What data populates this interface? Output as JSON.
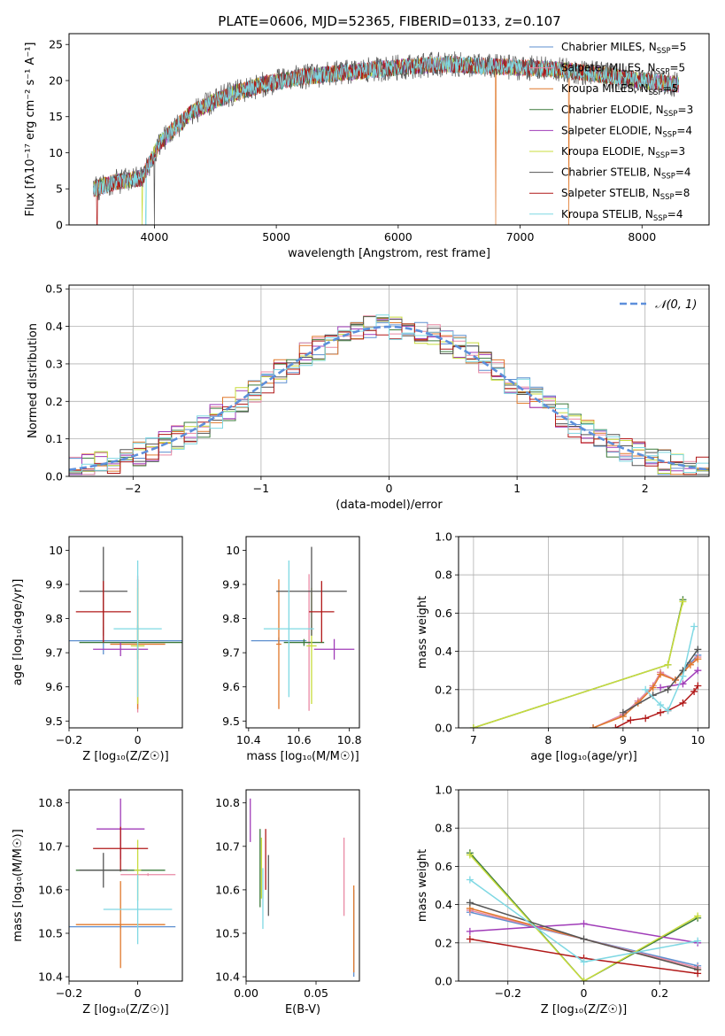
{
  "figure_title": "PLATE=0606, MJD=52365, FIBERID=0133, z=0.107",
  "colors": {
    "Chabrier MILES": "#5d8fcf",
    "Salpeter MILES": "#e989a4",
    "Kroupa MILES": "#e0792c",
    "Chabrier ELODIE": "#3b7a3b",
    "Salpeter ELODIE": "#a03cb8",
    "Kroupa ELODIE": "#c8dc3c",
    "Chabrier STELIB": "#555555",
    "Salpeter STELIB": "#b11818",
    "Kroupa STELIB": "#7fd8e3"
  },
  "chart_data": [
    {
      "id": "spectrum",
      "type": "line",
      "xlabel": "wavelength [Angstrom, rest frame]",
      "ylabel": "Flux [fλ10⁻¹⁷ erg cm⁻² s⁻¹ A⁻¹]",
      "xlim": [
        3300,
        8550
      ],
      "ylim": [
        0,
        26.5
      ],
      "xticks": [
        4000,
        5000,
        6000,
        7000,
        8000
      ],
      "yticks": [
        0,
        5,
        10,
        15,
        20,
        25
      ],
      "grid": false,
      "legend_position": "upper-right",
      "legend": [
        {
          "name": "Chabrier MILES",
          "sub": "SSP",
          "n": "5"
        },
        {
          "name": "Salpeter MILES",
          "sub": "SSP",
          "n": "5"
        },
        {
          "name": "Kroupa MILES",
          "sub": "SSP",
          "n": "5"
        },
        {
          "name": "Chabrier ELODIE",
          "sub": "SSP",
          "n": "3"
        },
        {
          "name": "Salpeter ELODIE",
          "sub": "SSP",
          "n": "4"
        },
        {
          "name": "Kroupa ELODIE",
          "sub": "SSP",
          "n": "3"
        },
        {
          "name": "Chabrier STELIB",
          "sub": "SSP",
          "n": "4"
        },
        {
          "name": "Salpeter STELIB",
          "sub": "SSP",
          "n": "8"
        },
        {
          "name": "Kroupa STELIB",
          "sub": "SSP",
          "n": "4"
        }
      ],
      "continuum": {
        "x": [
          3500,
          3700,
          3900,
          4050,
          4300,
          4600,
          4900,
          5200,
          5500,
          5800,
          6100,
          6400,
          6700,
          7000,
          7300,
          7600,
          7900,
          8250
        ],
        "y": [
          5,
          6,
          6.5,
          11.5,
          15.5,
          18,
          19.5,
          20.5,
          21,
          21.5,
          22,
          22.3,
          22,
          21.8,
          21.5,
          21,
          20.2,
          19.5
        ]
      },
      "data_range": [
        3500,
        8300
      ],
      "noise_amplitude": 1.5,
      "dropouts": [
        {
          "x": 3530,
          "series": "Salpeter STELIB"
        },
        {
          "x": 3900,
          "series": "Kroupa ELODIE"
        },
        {
          "x": 3930,
          "series": "Kroupa STELIB"
        },
        {
          "x": 4000,
          "series": "Chabrier STELIB"
        },
        {
          "x": 6800,
          "series": "Kroupa MILES"
        },
        {
          "x": 7400,
          "series": "Kroupa MILES"
        }
      ]
    },
    {
      "id": "residuals",
      "type": "bar",
      "xlabel": "(data-model)/error",
      "ylabel": "Normed distribution",
      "xlim": [
        -2.5,
        2.5
      ],
      "ylim": [
        0,
        0.51
      ],
      "xticks": [
        -2,
        -1,
        0,
        1,
        2
      ],
      "yticks": [
        0.0,
        0.1,
        0.2,
        0.3,
        0.4,
        0.5
      ],
      "grid": true,
      "bin_width": 0.1,
      "legend": [
        {
          "name": "𝒩(0, 1)",
          "style": "dashed"
        }
      ],
      "legend_position": "upper-right",
      "reference_curve": {
        "name": "𝒩(0, 1)",
        "mean": 0,
        "sigma": 1,
        "color": "#5d8fdb"
      },
      "series_jitter": 0.035
    },
    {
      "id": "age_vs_Z",
      "type": "scatter",
      "xlabel": "Z [log₁₀(Z/Z☉)]",
      "ylabel": "age  [log₁₀(age/yr)]",
      "xlim": [
        -0.2,
        0.13
      ],
      "ylim": [
        9.48,
        10.04
      ],
      "xticks": [
        -0.2,
        0.0
      ],
      "yticks": [
        9.5,
        9.6,
        9.7,
        9.8,
        9.9,
        10.0
      ],
      "grid": false,
      "points": [
        {
          "series": "Chabrier MILES",
          "x": -0.1,
          "y": 9.735,
          "xerr": 0.23,
          "yerr": 0.04
        },
        {
          "series": "Salpeter MILES",
          "x": 0.0,
          "y": 9.725,
          "xerr": 0.08,
          "yerr": 0.2
        },
        {
          "series": "Kroupa MILES",
          "x": 0.0,
          "y": 9.725,
          "xerr": 0.08,
          "yerr": 0.19
        },
        {
          "series": "Chabrier ELODIE",
          "x": 0.0,
          "y": 9.73,
          "xerr": 0.17,
          "yerr": 0.05
        },
        {
          "series": "Salpeter ELODIE",
          "x": -0.05,
          "y": 9.71,
          "xerr": 0.08,
          "yerr": 0.02
        },
        {
          "series": "Kroupa ELODIE",
          "x": 0.0,
          "y": 9.72,
          "xerr": 0.02,
          "yerr": 0.17
        },
        {
          "series": "Chabrier STELIB",
          "x": -0.1,
          "y": 9.88,
          "xerr": 0.07,
          "yerr": 0.13
        },
        {
          "series": "Salpeter STELIB",
          "x": -0.1,
          "y": 9.82,
          "xerr": 0.08,
          "yerr": 0.09
        },
        {
          "series": "Kroupa STELIB",
          "x": 0.0,
          "y": 9.77,
          "xerr": 0.07,
          "yerr": 0.2
        }
      ]
    },
    {
      "id": "age_vs_mass",
      "type": "scatter",
      "xlabel": "mass [log₁₀(M/M☉)]",
      "ylabel": "",
      "xlim": [
        10.39,
        10.84
      ],
      "ylim": [
        9.48,
        10.04
      ],
      "xticks": [
        10.4,
        10.6,
        10.8
      ],
      "yticks": [
        9.5,
        9.6,
        9.7,
        9.8,
        9.9,
        10.0
      ],
      "grid": false,
      "points": [
        {
          "series": "Chabrier MILES",
          "x": 10.52,
          "y": 9.735,
          "xerr": 0.11,
          "yerr": 0.01
        },
        {
          "series": "Salpeter MILES",
          "x": 10.64,
          "y": 9.73,
          "xerr": 0.01,
          "yerr": 0.2
        },
        {
          "series": "Kroupa MILES",
          "x": 10.52,
          "y": 9.725,
          "xerr": 0.01,
          "yerr": 0.19
        },
        {
          "series": "Chabrier ELODIE",
          "x": 10.62,
          "y": 9.73,
          "xerr": 0.08,
          "yerr": 0.01
        },
        {
          "series": "Salpeter ELODIE",
          "x": 10.74,
          "y": 9.71,
          "xerr": 0.08,
          "yerr": 0.03
        },
        {
          "series": "Kroupa ELODIE",
          "x": 10.65,
          "y": 9.72,
          "xerr": 0.02,
          "yerr": 0.17
        },
        {
          "series": "Chabrier STELIB",
          "x": 10.65,
          "y": 9.88,
          "xerr": 0.14,
          "yerr": 0.13
        },
        {
          "series": "Salpeter STELIB",
          "x": 10.69,
          "y": 9.82,
          "xerr": 0.05,
          "yerr": 0.09
        },
        {
          "series": "Kroupa STELIB",
          "x": 10.56,
          "y": 9.77,
          "xerr": 0.1,
          "yerr": 0.2
        }
      ]
    },
    {
      "id": "massweight_vs_age",
      "type": "line",
      "xlabel": "age  [log₁₀(age/yr)]",
      "ylabel": "mass weight",
      "xlim": [
        6.8,
        10.15
      ],
      "ylim": [
        0,
        1
      ],
      "xticks": [
        7,
        8,
        9,
        10
      ],
      "yticks": [
        0.0,
        0.2,
        0.4,
        0.6,
        0.8,
        1.0
      ],
      "grid": true,
      "series": [
        {
          "name": "Chabrier MILES",
          "x": [
            8.6,
            9.0,
            9.2,
            9.4,
            9.5,
            9.7,
            9.9,
            10.0
          ],
          "y": [
            0.0,
            0.07,
            0.14,
            0.22,
            0.29,
            0.25,
            0.34,
            0.38
          ]
        },
        {
          "name": "Salpeter MILES",
          "x": [
            8.6,
            9.0,
            9.2,
            9.4,
            9.5,
            9.7,
            9.9,
            10.0
          ],
          "y": [
            0.0,
            0.07,
            0.14,
            0.22,
            0.29,
            0.25,
            0.33,
            0.37
          ]
        },
        {
          "name": "Kroupa MILES",
          "x": [
            8.6,
            9.0,
            9.2,
            9.4,
            9.5,
            9.7,
            9.9,
            10.0
          ],
          "y": [
            0.0,
            0.06,
            0.13,
            0.21,
            0.28,
            0.25,
            0.33,
            0.36
          ]
        },
        {
          "name": "Chabrier ELODIE",
          "x": [
            7.0,
            9.6,
            9.8
          ],
          "y": [
            0.0,
            0.33,
            0.67
          ]
        },
        {
          "name": "Salpeter ELODIE",
          "x": [
            9.5,
            9.8,
            10.0
          ],
          "y": [
            0.21,
            0.23,
            0.3
          ]
        },
        {
          "name": "Kroupa ELODIE",
          "x": [
            7.0,
            9.6,
            9.8
          ],
          "y": [
            0.0,
            0.33,
            0.66
          ]
        },
        {
          "name": "Chabrier STELIB",
          "x": [
            9.0,
            9.4,
            9.6,
            9.8,
            10.0
          ],
          "y": [
            0.08,
            0.17,
            0.2,
            0.3,
            0.41
          ]
        },
        {
          "name": "Salpeter STELIB",
          "x": [
            8.9,
            9.1,
            9.3,
            9.5,
            9.6,
            9.8,
            9.95,
            10.0
          ],
          "y": [
            0.0,
            0.04,
            0.05,
            0.08,
            0.09,
            0.13,
            0.19,
            0.22
          ]
        },
        {
          "name": "Kroupa STELIB",
          "x": [
            9.3,
            9.5,
            9.6,
            9.8,
            9.95
          ],
          "y": [
            0.2,
            0.12,
            0.09,
            0.27,
            0.53
          ]
        }
      ]
    },
    {
      "id": "mass_vs_Z",
      "type": "scatter",
      "xlabel": "Z [log₁₀(Z/Z☉)]",
      "ylabel": "mass [log₁₀(M/M☉)]",
      "xlim": [
        -0.2,
        0.13
      ],
      "ylim": [
        10.39,
        10.83
      ],
      "xticks": [
        -0.2,
        0.0
      ],
      "yticks": [
        10.4,
        10.5,
        10.6,
        10.7,
        10.8
      ],
      "grid": false,
      "points": [
        {
          "series": "Chabrier MILES",
          "x": -0.05,
          "y": 10.515,
          "xerr": 0.16,
          "yerr": 0.005
        },
        {
          "series": "Salpeter MILES",
          "x": 0.03,
          "y": 10.635,
          "xerr": 0.08,
          "yerr": 0.003
        },
        {
          "series": "Kroupa MILES",
          "x": -0.05,
          "y": 10.52,
          "xerr": 0.13,
          "yerr": 0.1
        },
        {
          "series": "Chabrier ELODIE",
          "x": -0.05,
          "y": 10.645,
          "xerr": 0.13,
          "yerr": 0.003
        },
        {
          "series": "Salpeter ELODIE",
          "x": -0.05,
          "y": 10.74,
          "xerr": 0.07,
          "yerr": 0.07
        },
        {
          "series": "Kroupa ELODIE",
          "x": 0.0,
          "y": 10.645,
          "xerr": 0.01,
          "yerr": 0.07
        },
        {
          "series": "Chabrier STELIB",
          "x": -0.1,
          "y": 10.645,
          "xerr": 0.07,
          "yerr": 0.04
        },
        {
          "series": "Salpeter STELIB",
          "x": -0.05,
          "y": 10.695,
          "xerr": 0.08,
          "yerr": 0.05
        },
        {
          "series": "Kroupa STELIB",
          "x": 0.0,
          "y": 10.555,
          "xerr": 0.1,
          "yerr": 0.08
        }
      ]
    },
    {
      "id": "mass_vs_ebv",
      "type": "scatter",
      "xlabel": "E(B-V)",
      "ylabel": "",
      "xlim": [
        0.0,
        0.081
      ],
      "ylim": [
        10.39,
        10.83
      ],
      "xticks": [
        0.0,
        0.05
      ],
      "xtick_labels": [
        "0.00",
        "0.05"
      ],
      "yticks": [
        10.4,
        10.5,
        10.6,
        10.7,
        10.8
      ],
      "grid": false,
      "points": [
        {
          "series": "Chabrier MILES",
          "x": 0.077,
          "y": 10.5,
          "xerr": 0,
          "yerr": 0.1
        },
        {
          "series": "Salpeter MILES",
          "x": 0.07,
          "y": 10.63,
          "xerr": 0,
          "yerr": 0.09
        },
        {
          "series": "Kroupa MILES",
          "x": 0.077,
          "y": 10.51,
          "xerr": 0,
          "yerr": 0.1
        },
        {
          "series": "Chabrier ELODIE",
          "x": 0.01,
          "y": 10.65,
          "xerr": 0,
          "yerr": 0.09
        },
        {
          "series": "Salpeter ELODIE",
          "x": 0.003,
          "y": 10.76,
          "xerr": 0,
          "yerr": 0.05
        },
        {
          "series": "Kroupa ELODIE",
          "x": 0.011,
          "y": 10.65,
          "xerr": 0,
          "yerr": 0.07
        },
        {
          "series": "Chabrier STELIB",
          "x": 0.016,
          "y": 10.61,
          "xerr": 0,
          "yerr": 0.07
        },
        {
          "series": "Salpeter STELIB",
          "x": 0.014,
          "y": 10.67,
          "xerr": 0,
          "yerr": 0.07
        },
        {
          "series": "Kroupa STELIB",
          "x": 0.012,
          "y": 10.58,
          "xerr": 0,
          "yerr": 0.07
        }
      ]
    },
    {
      "id": "massweight_vs_Z",
      "type": "line",
      "xlabel": "Z [log₁₀(Z/Z☉)]",
      "ylabel": "mass weight",
      "xlim": [
        -0.33,
        0.33
      ],
      "ylim": [
        0,
        1
      ],
      "xticks": [
        -0.2,
        0.0,
        0.2
      ],
      "yticks": [
        0.0,
        0.2,
        0.4,
        0.6,
        0.8,
        1.0
      ],
      "grid": true,
      "series": [
        {
          "name": "Chabrier MILES",
          "x": [
            -0.3,
            0.3
          ],
          "y": [
            0.36,
            0.08
          ]
        },
        {
          "name": "Salpeter MILES",
          "x": [
            -0.3,
            0.3
          ],
          "y": [
            0.37,
            0.07
          ]
        },
        {
          "name": "Kroupa MILES",
          "x": [
            -0.3,
            0.3
          ],
          "y": [
            0.38,
            0.06
          ]
        },
        {
          "name": "Chabrier ELODIE",
          "x": [
            -0.3,
            0.0,
            0.3
          ],
          "y": [
            0.67,
            0.0,
            0.33
          ]
        },
        {
          "name": "Salpeter ELODIE",
          "x": [
            -0.3,
            0.0,
            0.3
          ],
          "y": [
            0.26,
            0.3,
            0.2
          ]
        },
        {
          "name": "Kroupa ELODIE",
          "x": [
            -0.3,
            0.0,
            0.3
          ],
          "y": [
            0.66,
            0.0,
            0.34
          ]
        },
        {
          "name": "Chabrier STELIB",
          "x": [
            -0.3,
            0.0,
            0.3
          ],
          "y": [
            0.41,
            0.22,
            0.06
          ]
        },
        {
          "name": "Salpeter STELIB",
          "x": [
            -0.3,
            0.0,
            0.3
          ],
          "y": [
            0.22,
            0.12,
            0.04
          ]
        },
        {
          "name": "Kroupa STELIB",
          "x": [
            -0.3,
            0.0,
            0.3
          ],
          "y": [
            0.53,
            0.1,
            0.21
          ]
        }
      ]
    }
  ]
}
